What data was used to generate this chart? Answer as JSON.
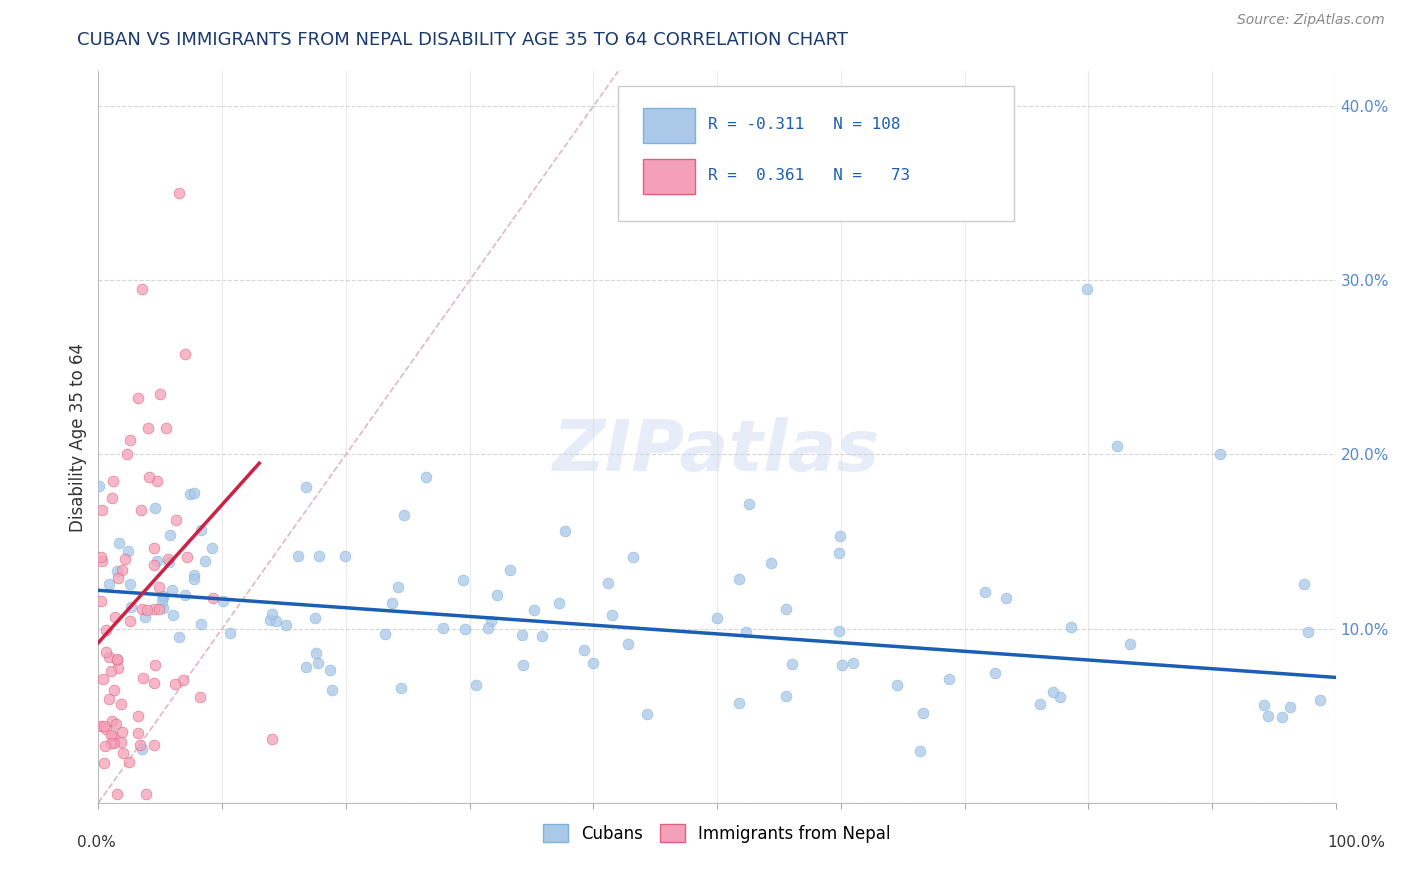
{
  "title": "CUBAN VS IMMIGRANTS FROM NEPAL DISABILITY AGE 35 TO 64 CORRELATION CHART",
  "source": "Source: ZipAtlas.com",
  "ylabel": "Disability Age 35 to 64",
  "xmin": 0.0,
  "xmax": 1.0,
  "ymin": 0.0,
  "ymax": 0.42,
  "watermark_text": "ZIPatlas",
  "blue_scatter_color": "#aac8e8",
  "blue_edge_color": "#7fb3d9",
  "pink_scatter_color": "#f4a0b8",
  "pink_edge_color": "#e06080",
  "blue_line_color": "#1a5fb4",
  "pink_line_color": "#cc2244",
  "diagonal_color": "#e0b0b8",
  "grid_color": "#cccccc",
  "ytick_color": "#5588cc",
  "title_color": "#1a3a6e",
  "source_color": "#888888",
  "ylabel_color": "#333333",
  "blue_R": "-0.311",
  "blue_N": "108",
  "pink_R": "0.361",
  "pink_N": "73",
  "blue_line_x0": 0.0,
  "blue_line_x1": 1.0,
  "blue_line_y0": 0.122,
  "blue_line_y1": 0.072,
  "pink_line_x0": 0.0,
  "pink_line_x1": 0.13,
  "pink_line_y0": 0.092,
  "pink_line_y1": 0.195
}
